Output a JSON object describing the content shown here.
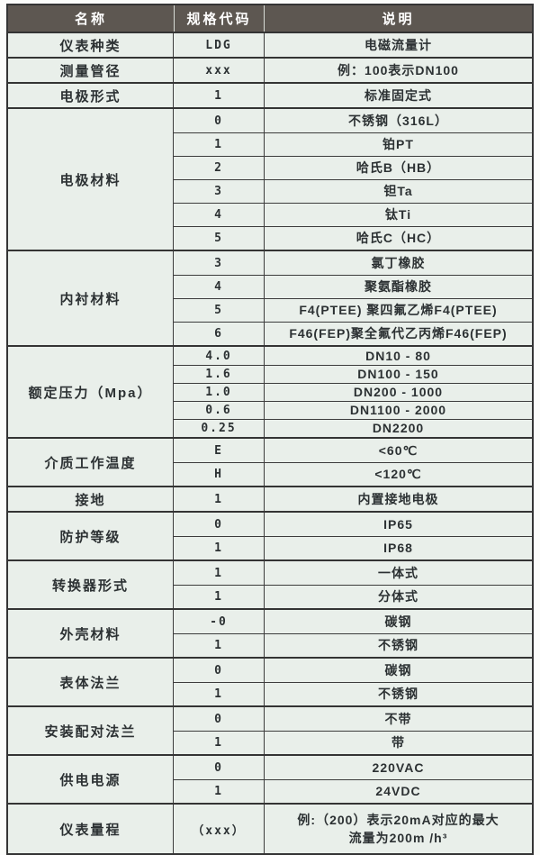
{
  "colors": {
    "header_bg": "#5d5751",
    "body_bg": "#e9efea",
    "border": "#343434",
    "text": "#2c3133"
  },
  "header": {
    "columns": [
      "名称",
      "规格代码",
      "说明"
    ]
  },
  "sections": [
    {
      "name": "仪表种类",
      "rows": [
        {
          "code": "LDG",
          "desc": "电磁流量计"
        }
      ]
    },
    {
      "name": "测量管径",
      "rows": [
        {
          "code": "xxx",
          "desc": "例：100表示DN100"
        }
      ]
    },
    {
      "name": "电极形式",
      "rows": [
        {
          "code": "1",
          "desc": "标准固定式"
        }
      ]
    },
    {
      "name": "电极材料",
      "rows": [
        {
          "code": "0",
          "desc": "不锈钢（316L）"
        },
        {
          "code": "1",
          "desc": "铂PT"
        },
        {
          "code": "2",
          "desc": "哈氏B（HB）"
        },
        {
          "code": "3",
          "desc": "钽Ta"
        },
        {
          "code": "4",
          "desc": "钛Ti"
        },
        {
          "code": "5",
          "desc": "哈氏C（HC）"
        }
      ]
    },
    {
      "name": "内衬材料",
      "rows": [
        {
          "code": "3",
          "desc": "氯丁橡胶"
        },
        {
          "code": "4",
          "desc": "聚氨酯橡胶"
        },
        {
          "code": "5",
          "desc": "F4(PTEE) 聚四氟乙烯F4(PTEE)"
        },
        {
          "code": "6",
          "desc": "F46(FEP)聚全氟代乙丙烯F46(FEP)"
        }
      ]
    },
    {
      "name": "额定压力（Mpa）",
      "rows": [
        {
          "code": "4.0",
          "desc": "DN10 - 80"
        },
        {
          "code": "1.6",
          "desc": "DN100 - 150"
        },
        {
          "code": "1.0",
          "desc": "DN200 - 1000"
        },
        {
          "code": "0.6",
          "desc": "DN1100 - 2000"
        },
        {
          "code": "0.25",
          "desc": "DN2200"
        }
      ]
    },
    {
      "name": "介质工作温度",
      "rows": [
        {
          "code": "E",
          "desc": "<60℃"
        },
        {
          "code": "H",
          "desc": "<120℃"
        }
      ]
    },
    {
      "name": "接地",
      "rows": [
        {
          "code": "1",
          "desc": "内置接地电极"
        }
      ]
    },
    {
      "name": "防护等级",
      "rows": [
        {
          "code": "0",
          "desc": "IP65"
        },
        {
          "code": "1",
          "desc": "IP68"
        }
      ]
    },
    {
      "name": "转换器形式",
      "rows": [
        {
          "code": "1",
          "desc": "一体式"
        },
        {
          "code": "1",
          "desc": "分体式"
        }
      ]
    },
    {
      "name": "外壳材料",
      "rows": [
        {
          "code": "-0",
          "desc": "碳钢"
        },
        {
          "code": "1",
          "desc": "不锈钢"
        }
      ]
    },
    {
      "name": "表体法兰",
      "rows": [
        {
          "code": "0",
          "desc": "碳钢"
        },
        {
          "code": "1",
          "desc": "不锈钢"
        }
      ]
    },
    {
      "name": "安装配对法兰",
      "rows": [
        {
          "code": "0",
          "desc": "不带"
        },
        {
          "code": "1",
          "desc": "带"
        }
      ]
    },
    {
      "name": "供电电源",
      "rows": [
        {
          "code": "0",
          "desc": "220VAC"
        },
        {
          "code": "1",
          "desc": "24VDC"
        }
      ]
    },
    {
      "name": "仪表量程",
      "rows": [
        {
          "code": "（xxx）",
          "desc": "例:（200）表示20mA对应的最大\n流量为200m /h³"
        }
      ]
    }
  ]
}
